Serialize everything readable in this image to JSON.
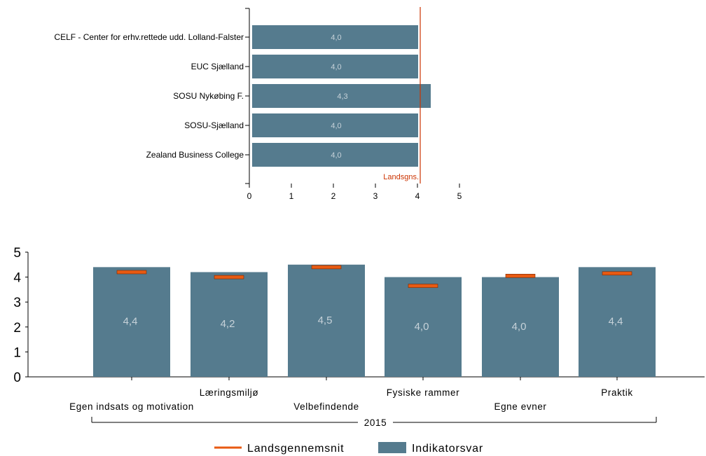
{
  "colors": {
    "bar": "#557b8e",
    "avg": "#cc3300",
    "avg_marker": "#e85a12",
    "axis": "#000000",
    "value_label": "#c6d2d9"
  },
  "chart_data": [
    {
      "type": "bar",
      "orientation": "horizontal",
      "categories": [
        "CELF - Center for erhv.rettede udd. Lolland-Falster",
        "EUC Sjælland",
        "SOSU Nykøbing F.",
        "SOSU-Sjælland",
        "Zealand Business College"
      ],
      "values": [
        4.0,
        4.0,
        4.3,
        4.0,
        4.0
      ],
      "value_labels": [
        "4,0",
        "4,0",
        "4,3",
        "4,0",
        "4,0"
      ],
      "xlim": [
        0,
        5
      ],
      "x_ticks": [
        "0",
        "1",
        "2",
        "3",
        "4",
        "5"
      ],
      "reference_line": {
        "value": 4.05,
        "label": "Landsgns."
      },
      "grid": false
    },
    {
      "type": "bar",
      "orientation": "vertical",
      "categories": [
        "Egen indsats og motivation",
        "Læringsmiljø",
        "Velbefindende",
        "Fysiske rammer",
        "Egne evner",
        "Praktik"
      ],
      "values": [
        4.4,
        4.2,
        4.5,
        4.0,
        4.0,
        4.4
      ],
      "value_labels": [
        "4,4",
        "4,2",
        "4,5",
        "4,0",
        "4,0",
        "4,4"
      ],
      "averages": [
        4.2,
        4.0,
        4.4,
        3.65,
        4.05,
        4.15
      ],
      "ylim": [
        0,
        5
      ],
      "y_ticks": [
        "0",
        "1",
        "2",
        "3",
        "4",
        "5"
      ],
      "group_label": "2015",
      "legend": {
        "position": "bottom",
        "items": [
          {
            "name": "Landsgennemsnit",
            "kind": "line"
          },
          {
            "name": "Indikatorsvar",
            "kind": "box"
          }
        ]
      },
      "grid": false
    }
  ]
}
